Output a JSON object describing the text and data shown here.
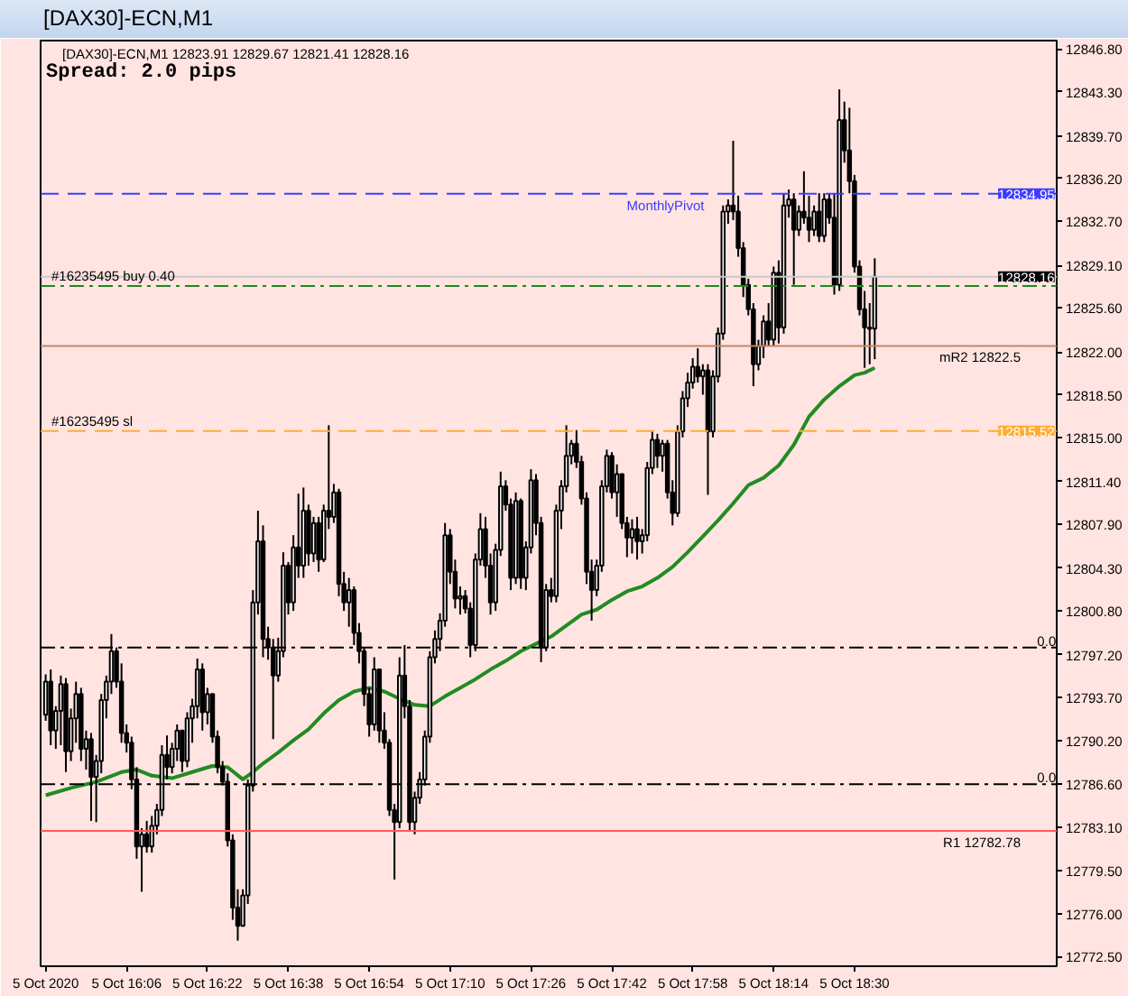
{
  "chart_data": {
    "type": "candlestick",
    "title": "[DAX30]-ECN,M1",
    "subtitle": "[DAX30]-ECN,M1  12823.91 12829.67 12821.41 12828.16",
    "annotations": [
      "Spread: 2.0 pips",
      {
        "text": "12834.95",
        "x": "2020-10-05T19:04",
        "y": 12834.95
      },
      {
        "text": "12828.16",
        "x": "2020-10-05T19:04",
        "y": 12828.16
      },
      {
        "text": "12815.52",
        "x": "2020-10-05T19:04",
        "y": 12815.52
      },
      {
        "text": "0.0",
        "x": "2020-10-05T19:08",
        "y": 12797.8
      },
      {
        "text": "0.0",
        "x": "2020-10-05T19:08",
        "y": 12786.6
      }
    ],
    "series": [
      {
        "type": "line",
        "color": "#228b22",
        "x": [
          "2020-10-05T15:50",
          "2020-10-05T15:55",
          "2020-10-05T16:00",
          "2020-10-05T16:05",
          "2020-10-05T16:08",
          "2020-10-05T16:11",
          "2020-10-05T16:15",
          "2020-10-05T16:19",
          "2020-10-05T16:23",
          "2020-10-05T16:26",
          "2020-10-05T16:29",
          "2020-10-05T16:31",
          "2020-10-05T16:33",
          "2020-10-05T16:36",
          "2020-10-05T16:39",
          "2020-10-05T16:42",
          "2020-10-05T16:45",
          "2020-10-05T16:48",
          "2020-10-05T16:51",
          "2020-10-05T16:54",
          "2020-10-05T16:57",
          "2020-10-05T17:00",
          "2020-10-05T17:03",
          "2020-10-05T17:06",
          "2020-10-05T17:09",
          "2020-10-05T17:12",
          "2020-10-05T17:15",
          "2020-10-05T17:18",
          "2020-10-05T17:21",
          "2020-10-05T17:24",
          "2020-10-05T17:27",
          "2020-10-05T17:30",
          "2020-10-05T17:33",
          "2020-10-05T17:36",
          "2020-10-05T17:39",
          "2020-10-05T17:42",
          "2020-10-05T17:45",
          "2020-10-05T17:48",
          "2020-10-05T17:51",
          "2020-10-05T17:54",
          "2020-10-05T17:57",
          "2020-10-05T18:00",
          "2020-10-05T18:03",
          "2020-10-05T18:06",
          "2020-10-05T18:09",
          "2020-10-05T18:12",
          "2020-10-05T18:15",
          "2020-10-05T18:18",
          "2020-10-05T18:21",
          "2020-10-05T18:24",
          "2020-10-05T18:27",
          "2020-10-05T18:30",
          "2020-10-05T18:32",
          "2020-10-05T18:34"
        ],
        "values": [
          12785.7,
          12786.3,
          12786.8,
          12787.6,
          12787.8,
          12787.3,
          12787.1,
          12787.6,
          12788.1,
          12788.0,
          12787.0,
          12787.6,
          12788.3,
          12789.2,
          12790.2,
          12791.1,
          12792.4,
          12793.5,
          12794.2,
          12794.5,
          12794.2,
          12793.6,
          12793.1,
          12793.0,
          12793.8,
          12794.5,
          12795.2,
          12796.0,
          12796.7,
          12797.5,
          12798.1,
          12798.7,
          12799.6,
          12800.5,
          12800.9,
          12801.7,
          12802.4,
          12802.8,
          12803.5,
          12804.4,
          12805.6,
          12806.9,
          12808.2,
          12809.6,
          12811.1,
          12811.7,
          12812.7,
          12814.4,
          12816.7,
          12818.1,
          12819.2,
          12820.1,
          12820.3,
          12820.7
        ]
      },
      {
        "color": "#000000",
        "x": [
          "2020-10-05T15:50",
          "2020-10-05T15:51",
          "2020-10-05T15:52",
          "2020-10-05T15:53",
          "2020-10-05T15:54",
          "2020-10-05T15:55",
          "2020-10-05T15:56",
          "2020-10-05T15:57",
          "2020-10-05T15:58",
          "2020-10-05T15:59",
          "2020-10-05T16:00",
          "2020-10-05T16:01",
          "2020-10-05T16:02",
          "2020-10-05T16:03",
          "2020-10-05T16:04",
          "2020-10-05T16:05",
          "2020-10-05T16:06",
          "2020-10-05T16:07",
          "2020-10-05T16:08",
          "2020-10-05T16:09",
          "2020-10-05T16:10",
          "2020-10-05T16:11",
          "2020-10-05T16:12",
          "2020-10-05T16:13",
          "2020-10-05T16:14",
          "2020-10-05T16:15",
          "2020-10-05T16:16",
          "2020-10-05T16:17",
          "2020-10-05T16:18",
          "2020-10-05T16:19",
          "2020-10-05T16:20",
          "2020-10-05T16:21",
          "2020-10-05T16:22",
          "2020-10-05T16:23",
          "2020-10-05T16:24",
          "2020-10-05T16:25",
          "2020-10-05T16:26",
          "2020-10-05T16:27",
          "2020-10-05T16:28",
          "2020-10-05T16:29",
          "2020-10-05T16:30",
          "2020-10-05T16:31",
          "2020-10-05T16:32",
          "2020-10-05T16:33",
          "2020-10-05T16:34",
          "2020-10-05T16:35",
          "2020-10-05T16:36",
          "2020-10-05T16:37",
          "2020-10-05T16:38",
          "2020-10-05T16:39",
          "2020-10-05T16:40",
          "2020-10-05T16:41",
          "2020-10-05T16:42",
          "2020-10-05T16:43",
          "2020-10-05T16:44",
          "2020-10-05T16:45",
          "2020-10-05T16:46",
          "2020-10-05T16:47",
          "2020-10-05T16:48",
          "2020-10-05T16:49",
          "2020-10-05T16:50",
          "2020-10-05T16:51",
          "2020-10-05T16:52",
          "2020-10-05T16:53",
          "2020-10-05T16:54",
          "2020-10-05T16:55",
          "2020-10-05T16:56",
          "2020-10-05T16:57",
          "2020-10-05T16:58",
          "2020-10-05T16:59",
          "2020-10-05T17:00",
          "2020-10-05T17:01",
          "2020-10-05T17:02",
          "2020-10-05T17:03",
          "2020-10-05T17:04",
          "2020-10-05T17:05",
          "2020-10-05T17:06",
          "2020-10-05T17:07",
          "2020-10-05T17:08",
          "2020-10-05T17:09",
          "2020-10-05T17:10",
          "2020-10-05T17:11",
          "2020-10-05T17:12",
          "2020-10-05T17:13",
          "2020-10-05T17:14",
          "2020-10-05T17:15",
          "2020-10-05T17:16",
          "2020-10-05T17:17",
          "2020-10-05T17:18",
          "2020-10-05T17:19",
          "2020-10-05T17:20",
          "2020-10-05T17:21",
          "2020-10-05T17:22",
          "2020-10-05T17:23",
          "2020-10-05T17:24",
          "2020-10-05T17:25",
          "2020-10-05T17:26",
          "2020-10-05T17:27",
          "2020-10-05T17:28",
          "2020-10-05T17:29",
          "2020-10-05T17:30",
          "2020-10-05T17:31",
          "2020-10-05T17:32",
          "2020-10-05T17:33",
          "2020-10-05T17:34",
          "2020-10-05T17:35",
          "2020-10-05T17:36",
          "2020-10-05T17:37",
          "2020-10-05T17:38",
          "2020-10-05T17:39",
          "2020-10-05T17:40",
          "2020-10-05T17:41",
          "2020-10-05T17:42",
          "2020-10-05T17:43",
          "2020-10-05T17:44",
          "2020-10-05T17:45",
          "2020-10-05T17:46",
          "2020-10-05T17:47",
          "2020-10-05T17:48",
          "2020-10-05T17:49",
          "2020-10-05T17:50",
          "2020-10-05T17:51",
          "2020-10-05T17:52",
          "2020-10-05T17:53",
          "2020-10-05T17:54",
          "2020-10-05T17:55",
          "2020-10-05T17:56",
          "2020-10-05T17:57",
          "2020-10-05T17:58",
          "2020-10-05T17:59",
          "2020-10-05T18:00",
          "2020-10-05T18:01",
          "2020-10-05T18:02",
          "2020-10-05T18:03",
          "2020-10-05T18:04",
          "2020-10-05T18:05",
          "2020-10-05T18:06",
          "2020-10-05T18:07",
          "2020-10-05T18:08",
          "2020-10-05T18:09",
          "2020-10-05T18:10",
          "2020-10-05T18:11",
          "2020-10-05T18:12",
          "2020-10-05T18:13",
          "2020-10-05T18:14",
          "2020-10-05T18:15",
          "2020-10-05T18:16",
          "2020-10-05T18:17",
          "2020-10-05T18:18",
          "2020-10-05T18:19",
          "2020-10-05T18:20",
          "2020-10-05T18:21",
          "2020-10-05T18:22",
          "2020-10-05T18:23",
          "2020-10-05T18:24",
          "2020-10-05T18:25",
          "2020-10-05T18:26",
          "2020-10-05T18:27",
          "2020-10-05T18:28",
          "2020-10-05T18:29",
          "2020-10-05T18:30",
          "2020-10-05T18:31",
          "2020-10-05T18:32",
          "2020-10-05T18:33",
          "2020-10-05T18:34"
        ],
        "ohlc": [
          [
            12792.3,
            12795.6,
            12791.8,
            12795.0
          ],
          [
            12795.0,
            12796.0,
            12789.8,
            12791.0
          ],
          [
            12791.0,
            12793.0,
            12789.5,
            12792.6
          ],
          [
            12792.6,
            12795.5,
            12789.8,
            12794.8
          ],
          [
            12794.8,
            12795.3,
            12787.6,
            12789.3
          ],
          [
            12789.3,
            12792.8,
            12788.5,
            12792.0
          ],
          [
            12792.0,
            12795.0,
            12790.0,
            12794.0
          ],
          [
            12794.0,
            12794.5,
            12788.5,
            12789.5
          ],
          [
            12789.5,
            12791.0,
            12787.8,
            12790.3
          ],
          [
            12790.3,
            12790.8,
            12783.6,
            12787.2
          ],
          [
            12787.2,
            12789.0,
            12783.5,
            12788.5
          ],
          [
            12788.5,
            12794.0,
            12787.5,
            12793.5
          ],
          [
            12793.5,
            12795.5,
            12792.0,
            12795.0
          ],
          [
            12795.0,
            12798.9,
            12794.0,
            12797.5
          ],
          [
            12797.5,
            12797.8,
            12794.5,
            12795.0
          ],
          [
            12795.0,
            12796.5,
            12790.0,
            12790.8
          ],
          [
            12790.8,
            12791.5,
            12789.2,
            12790.0
          ],
          [
            12790.0,
            12790.5,
            12786.2,
            12787.0
          ],
          [
            12787.0,
            12788.0,
            12780.5,
            12781.5
          ],
          [
            12781.5,
            12783.0,
            12777.8,
            12782.5
          ],
          [
            12782.5,
            12783.6,
            12781.0,
            12781.5
          ],
          [
            12781.5,
            12784.0,
            12781.0,
            12783.2
          ],
          [
            12783.2,
            12785.0,
            12782.5,
            12784.5
          ],
          [
            12784.5,
            12789.8,
            12784.0,
            12789.0
          ],
          [
            12789.0,
            12790.6,
            12787.0,
            12788.0
          ],
          [
            12788.0,
            12790.0,
            12787.5,
            12789.5
          ],
          [
            12789.5,
            12791.5,
            12788.5,
            12791.0
          ],
          [
            12791.0,
            12791.0,
            12787.6,
            12788.5
          ],
          [
            12788.5,
            12792.5,
            12788.0,
            12792.0
          ],
          [
            12792.0,
            12793.6,
            12790.0,
            12793.0
          ],
          [
            12793.0,
            12796.9,
            12792.0,
            12796.0
          ],
          [
            12796.0,
            12796.5,
            12791.0,
            12792.5
          ],
          [
            12792.5,
            12794.5,
            12791.5,
            12794.0
          ],
          [
            12794.0,
            12794.0,
            12790.0,
            12790.5
          ],
          [
            12790.5,
            12791.0,
            12787.5,
            12788.0
          ],
          [
            12788.0,
            12788.5,
            12786.5,
            12786.8
          ],
          [
            12786.8,
            12787.5,
            12781.5,
            12782.0
          ],
          [
            12782.0,
            12782.5,
            12775.5,
            12776.5
          ],
          [
            12776.5,
            12778.0,
            12773.8,
            12775.0
          ],
          [
            12775.0,
            12778.0,
            12775.0,
            12777.5
          ],
          [
            12777.5,
            12787.0,
            12776.8,
            12786.5
          ],
          [
            12786.5,
            12802.5,
            12786.0,
            12801.5
          ],
          [
            12801.5,
            12809.0,
            12800.5,
            12806.5
          ],
          [
            12806.5,
            12807.8,
            12797.0,
            12798.5
          ],
          [
            12798.5,
            12799.5,
            12796.8,
            12797.8
          ],
          [
            12797.8,
            12798.5,
            12790.3,
            12795.5
          ],
          [
            12795.5,
            12798.6,
            12795.0,
            12797.5
          ],
          [
            12797.5,
            12805.6,
            12797.0,
            12804.5
          ],
          [
            12804.5,
            12804.8,
            12800.5,
            12801.5
          ],
          [
            12801.5,
            12807.0,
            12800.8,
            12806.0
          ],
          [
            12806.0,
            12810.4,
            12803.5,
            12804.5
          ],
          [
            12804.5,
            12810.9,
            12803.5,
            12809.0
          ],
          [
            12809.0,
            12809.5,
            12804.5,
            12805.5
          ],
          [
            12805.5,
            12808.5,
            12804.8,
            12808.0
          ],
          [
            12808.0,
            12808.5,
            12804.0,
            12805.0
          ],
          [
            12805.0,
            12809.5,
            12804.8,
            12809.0
          ],
          [
            12809.0,
            12816.0,
            12807.5,
            12808.5
          ],
          [
            12808.5,
            12811.2,
            12808.0,
            12810.5
          ],
          [
            12810.5,
            12810.8,
            12802.0,
            12803.0
          ],
          [
            12803.0,
            12804.0,
            12800.8,
            12801.5
          ],
          [
            12801.5,
            12803.5,
            12799.5,
            12802.5
          ],
          [
            12802.5,
            12802.8,
            12798.0,
            12799.0
          ],
          [
            12799.0,
            12799.8,
            12796.5,
            12797.5
          ],
          [
            12797.5,
            12797.8,
            12793.0,
            12794.0
          ],
          [
            12794.0,
            12794.5,
            12790.5,
            12791.5
          ],
          [
            12791.5,
            12797.0,
            12791.0,
            12796.0
          ],
          [
            12796.0,
            12796.0,
            12790.0,
            12791.0
          ],
          [
            12791.0,
            12792.5,
            12789.5,
            12790.0
          ],
          [
            12790.0,
            12790.3,
            12784.0,
            12784.5
          ],
          [
            12784.5,
            12785.0,
            12778.8,
            12783.5
          ],
          [
            12783.5,
            12797.0,
            12783.0,
            12795.5
          ],
          [
            12795.5,
            12798.0,
            12792.0,
            12793.0
          ],
          [
            12793.0,
            12793.5,
            12782.8,
            12783.5
          ],
          [
            12783.5,
            12786.0,
            12782.5,
            12785.5
          ],
          [
            12785.5,
            12787.6,
            12785.0,
            12787.0
          ],
          [
            12787.0,
            12791.0,
            12786.5,
            12790.5
          ],
          [
            12790.5,
            12797.5,
            12790.0,
            12797.0
          ],
          [
            12797.0,
            12799.2,
            12796.5,
            12798.5
          ],
          [
            12798.5,
            12800.6,
            12797.5,
            12800.0
          ],
          [
            12800.0,
            12808.0,
            12799.5,
            12807.0
          ],
          [
            12807.0,
            12807.5,
            12803.0,
            12804.0
          ],
          [
            12804.0,
            12805.0,
            12801.0,
            12801.8
          ],
          [
            12801.8,
            12802.8,
            12800.5,
            12802.0
          ],
          [
            12802.0,
            12802.5,
            12800.6,
            12801.0
          ],
          [
            12801.0,
            12801.5,
            12797.0,
            12798.0
          ],
          [
            12798.0,
            12805.5,
            12797.5,
            12805.0
          ],
          [
            12805.0,
            12808.8,
            12804.5,
            12807.5
          ],
          [
            12807.5,
            12808.5,
            12803.5,
            12804.5
          ],
          [
            12804.5,
            12805.5,
            12800.5,
            12801.5
          ],
          [
            12801.5,
            12806.3,
            12800.8,
            12805.8
          ],
          [
            12805.8,
            12812.2,
            12805.3,
            12811.0
          ],
          [
            12811.0,
            12811.5,
            12809.0,
            12809.5
          ],
          [
            12809.5,
            12810.0,
            12802.5,
            12803.5
          ],
          [
            12803.5,
            12810.5,
            12803.0,
            12809.8
          ],
          [
            12809.8,
            12810.0,
            12802.6,
            12803.5
          ],
          [
            12803.5,
            12806.5,
            12802.5,
            12806.0
          ],
          [
            12806.0,
            12812.4,
            12805.5,
            12811.5
          ],
          [
            12811.5,
            12812.0,
            12807.0,
            12808.0
          ],
          [
            12808.0,
            12808.5,
            12796.6,
            12797.8
          ],
          [
            12797.8,
            12803.0,
            12797.5,
            12802.5
          ],
          [
            12802.5,
            12803.5,
            12801.5,
            12802.0
          ],
          [
            12802.0,
            12809.5,
            12801.5,
            12809.0
          ],
          [
            12809.0,
            12811.5,
            12807.5,
            12811.0
          ],
          [
            12811.0,
            12816.0,
            12810.5,
            12813.5
          ],
          [
            12813.5,
            12814.8,
            12812.8,
            12814.5
          ],
          [
            12814.5,
            12815.6,
            12812.5,
            12813.0
          ],
          [
            12813.0,
            12813.5,
            12809.5,
            12810.0
          ],
          [
            12810.0,
            12810.5,
            12803.0,
            12804.0
          ],
          [
            12804.0,
            12805.0,
            12800.0,
            12802.5
          ],
          [
            12802.5,
            12805.0,
            12802.0,
            12804.5
          ],
          [
            12804.5,
            12811.5,
            12804.0,
            12811.0
          ],
          [
            12811.0,
            12814.0,
            12810.5,
            12813.5
          ],
          [
            12813.5,
            12813.8,
            12810.0,
            12810.5
          ],
          [
            12810.5,
            12812.8,
            12808.5,
            12812.0
          ],
          [
            12812.0,
            12812.0,
            12807.5,
            12808.0
          ],
          [
            12808.0,
            12808.5,
            12805.2,
            12806.8
          ],
          [
            12806.8,
            12808.3,
            12805.5,
            12807.5
          ],
          [
            12807.5,
            12808.5,
            12805.0,
            12806.5
          ],
          [
            12806.5,
            12807.5,
            12805.5,
            12807.0
          ],
          [
            12807.0,
            12813.0,
            12806.5,
            12812.5
          ],
          [
            12812.5,
            12815.5,
            12812.0,
            12814.8
          ],
          [
            12814.8,
            12815.3,
            12812.5,
            12813.5
          ],
          [
            12813.5,
            12814.8,
            12812.2,
            12814.5
          ],
          [
            12814.5,
            12814.8,
            12810.0,
            12810.5
          ],
          [
            12810.5,
            12811.5,
            12807.8,
            12808.8
          ],
          [
            12808.8,
            12816.0,
            12808.5,
            12815.5
          ],
          [
            12815.5,
            12818.8,
            12815.0,
            12818.2
          ],
          [
            12818.2,
            12820.3,
            12817.5,
            12819.5
          ],
          [
            12819.5,
            12821.5,
            12819.0,
            12820.8
          ],
          [
            12820.8,
            12822.3,
            12819.5,
            12820.0
          ],
          [
            12820.0,
            12821.0,
            12818.5,
            12820.5
          ],
          [
            12820.5,
            12821.0,
            12810.3,
            12815.5
          ],
          [
            12815.5,
            12820.5,
            12815.0,
            12820.0
          ],
          [
            12820.0,
            12824.0,
            12819.5,
            12823.5
          ],
          [
            12823.5,
            12834.0,
            12823.0,
            12833.5
          ],
          [
            12833.5,
            12834.5,
            12832.5,
            12834.0
          ],
          [
            12834.0,
            12839.3,
            12832.8,
            12833.5
          ],
          [
            12833.5,
            12834.8,
            12829.8,
            12830.5
          ],
          [
            12830.5,
            12831.0,
            12826.5,
            12827.5
          ],
          [
            12827.5,
            12828.0,
            12825.0,
            12825.5
          ],
          [
            12825.5,
            12826.0,
            12819.2,
            12821.0
          ],
          [
            12821.0,
            12823.0,
            12820.5,
            12822.5
          ],
          [
            12822.5,
            12825.0,
            12821.5,
            12824.5
          ],
          [
            12824.5,
            12826.0,
            12822.5,
            12823.0
          ],
          [
            12823.0,
            12829.0,
            12822.5,
            12828.5
          ],
          [
            12828.5,
            12829.5,
            12822.7,
            12824.0
          ],
          [
            12824.0,
            12835.0,
            12823.5,
            12834.0
          ],
          [
            12834.0,
            12835.3,
            12833.0,
            12834.5
          ],
          [
            12834.5,
            12835.0,
            12827.5,
            12832.0
          ],
          [
            12832.0,
            12834.0,
            12831.5,
            12833.5
          ],
          [
            12833.5,
            12836.8,
            12832.5,
            12833.0
          ],
          [
            12833.0,
            12834.8,
            12831.0,
            12832.0
          ],
          [
            12832.0,
            12834.0,
            12831.5,
            12833.5
          ],
          [
            12833.5,
            12835.0,
            12831.0,
            12831.5
          ],
          [
            12831.5,
            12835.0,
            12831.0,
            12834.5
          ],
          [
            12834.5,
            12835.0,
            12832.5,
            12833.0
          ],
          [
            12833.0,
            12835.0,
            12826.7,
            12827.5
          ],
          [
            12827.5,
            12843.5,
            12827.0,
            12841.0
          ],
          [
            12841.0,
            12842.5,
            12837.5,
            12838.5
          ],
          [
            12838.5,
            12842.0,
            12835.0,
            12836.0
          ],
          [
            12836.0,
            12836.5,
            12828.5,
            12829.0
          ],
          [
            12829.0,
            12829.5,
            12825.0,
            12825.5
          ],
          [
            12825.5,
            12827.0,
            12820.7,
            12824.0
          ],
          [
            12824.0,
            12826.0,
            12821.0,
            12823.9
          ],
          [
            12823.91,
            12829.67,
            12821.41,
            12828.16
          ]
        ]
      }
    ],
    "xlim": [
      "2020-10-05T15:49",
      "2020-10-05T19:10"
    ],
    "xticks": [
      {
        "value": "2020-10-05T15:50",
        "label": "5 Oct 2020"
      },
      {
        "value": "2020-10-05T16:06",
        "label": "5 Oct 16:06"
      },
      {
        "value": "2020-10-05T16:22",
        "label": "5 Oct 16:22"
      },
      {
        "value": "2020-10-05T16:38",
        "label": "5 Oct 16:38"
      },
      {
        "value": "2020-10-05T16:54",
        "label": "5 Oct 16:54"
      },
      {
        "value": "2020-10-05T17:10",
        "label": "5 Oct 17:10"
      },
      {
        "value": "2020-10-05T17:26",
        "label": "5 Oct 17:26"
      },
      {
        "value": "2020-10-05T17:42",
        "label": "5 Oct 17:42"
      },
      {
        "value": "2020-10-05T17:58",
        "label": "5 Oct 17:58"
      },
      {
        "value": "2020-10-05T18:14",
        "label": "5 Oct 18:14"
      },
      {
        "value": "2020-10-05T18:30",
        "label": "5 Oct 18:30"
      }
    ],
    "ylim": [
      12771.7,
      12847.5
    ],
    "yticks": [
      {
        "value": 12846.8,
        "label": "12846.80"
      },
      {
        "value": 12843.3,
        "label": "12843.30"
      },
      {
        "value": 12839.7,
        "label": "12839.70"
      },
      {
        "value": 12836.2,
        "label": "12836.20"
      },
      {
        "value": 12832.7,
        "label": "12832.70"
      },
      {
        "value": 12829.1,
        "label": "12829.10"
      },
      {
        "value": 12825.6,
        "label": "12825.60"
      },
      {
        "value": 12822.0,
        "label": "12822.00"
      },
      {
        "value": 12818.5,
        "label": "12818.50"
      },
      {
        "value": 12815.0,
        "label": "12815.00"
      },
      {
        "value": 12811.4,
        "label": "12811.40"
      },
      {
        "value": 12807.9,
        "label": "12807.90"
      },
      {
        "value": 12804.3,
        "label": "12804.30"
      },
      {
        "value": 12800.8,
        "label": "12800.80"
      },
      {
        "value": 12797.2,
        "label": "12797.20"
      },
      {
        "value": 12793.7,
        "label": "12793.70"
      },
      {
        "value": 12790.2,
        "label": "12790.20"
      },
      {
        "value": 12786.6,
        "label": "12786.60"
      },
      {
        "value": 12783.1,
        "label": "12783.10"
      },
      {
        "value": 12779.5,
        "label": "12779.50"
      },
      {
        "value": 12776.0,
        "label": "12776.00"
      },
      {
        "value": 12772.5,
        "label": "12772.50"
      }
    ],
    "ref_lines": [
      {
        "axis": "y",
        "value": 12834.95,
        "label": "MonthlyPivot",
        "color": "#3c3cff",
        "line_style": "dashed"
      },
      {
        "axis": "y",
        "value": 12828.16,
        "label": null,
        "color": "#c8c8c8",
        "line_style": "solid"
      },
      {
        "axis": "y",
        "value": 12827.4,
        "label": "#16235495 buy 0.40",
        "color": "#1a8c1a",
        "line_style": "dashdot"
      },
      {
        "axis": "y",
        "value": 12822.5,
        "label": "mR2 12822.5",
        "color": "#c0866a",
        "line_style": "solid"
      },
      {
        "axis": "y",
        "value": 12815.52,
        "label": "#16235495 sl",
        "color": "#ffad33",
        "line_style": "dashed"
      },
      {
        "axis": "y",
        "value": 12797.8,
        "label": null,
        "color": "#000000",
        "line_style": "dashdot"
      },
      {
        "axis": "y",
        "value": 12786.6,
        "label": null,
        "color": "#000000",
        "line_style": "dashdot"
      },
      {
        "axis": "y",
        "value": 12782.78,
        "label": "R1 12782.78",
        "color": "#ff5a5a",
        "line_style": "solid"
      }
    ]
  }
}
